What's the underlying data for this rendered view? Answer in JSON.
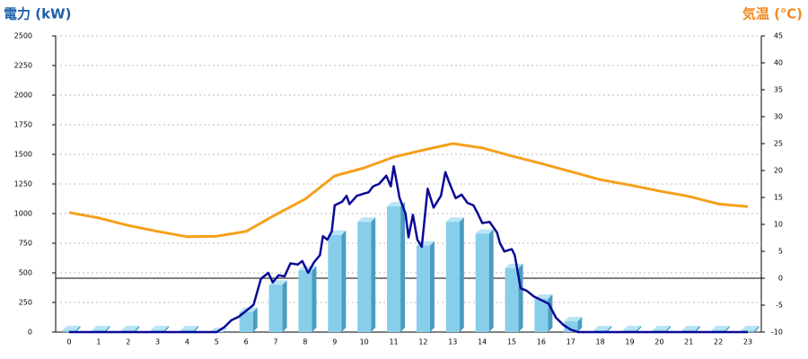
{
  "chart_data": {
    "type": "bar_line",
    "y_title": "電力 (kW)",
    "y2_title": "気温 (℃)",
    "categories": [
      0,
      1,
      2,
      3,
      4,
      5,
      6,
      7,
      8,
      9,
      10,
      11,
      12,
      13,
      14,
      15,
      16,
      17,
      18,
      19,
      20,
      21,
      22,
      23
    ],
    "ylim": [
      0,
      2500
    ],
    "yticks": [
      0,
      250,
      500,
      750,
      1000,
      1250,
      1500,
      1750,
      2000,
      2250,
      2500
    ],
    "y2lim": [
      -10,
      45
    ],
    "y2ticks": [
      -10,
      -5,
      0,
      5,
      10,
      15,
      20,
      25,
      30,
      35,
      40,
      45
    ],
    "grid": true,
    "series": [
      {
        "type": "bar",
        "color": "#87ceeb",
        "values": [
          15,
          15,
          15,
          15,
          15,
          0,
          170,
          400,
          520,
          820,
          930,
          1060,
          730,
          930,
          830,
          540,
          280,
          90,
          15,
          15,
          15,
          15,
          15,
          15
        ]
      },
      {
        "type": "line",
        "color": "#f5a01a",
        "axis": "y2",
        "values": [
          12.2,
          11.2,
          9.8,
          8.7,
          7.7,
          7.8,
          8.7,
          11.8,
          14.7,
          19,
          20.5,
          22.5,
          23.8,
          25,
          24.2,
          22.7,
          21.3,
          19.8,
          18.3,
          17.3,
          16.2,
          15.2,
          13.8,
          13.3
        ]
      },
      {
        "type": "line",
        "color": "#0a0a96",
        "x": [
          0,
          5,
          5.25,
          5.5,
          5.75,
          6,
          6.25,
          6.5,
          6.75,
          6.9,
          7.1,
          7.3,
          7.5,
          7.75,
          7.9,
          8.1,
          8.3,
          8.5,
          8.6,
          8.75,
          8.9,
          9,
          9.25,
          9.4,
          9.5,
          9.75,
          10,
          10.15,
          10.3,
          10.5,
          10.75,
          10.9,
          11,
          11.2,
          11.4,
          11.5,
          11.65,
          11.8,
          11.95,
          12.15,
          12.35,
          12.6,
          12.75,
          12.9,
          13.1,
          13.3,
          13.5,
          13.7,
          13.85,
          14,
          14.25,
          14.5,
          14.6,
          14.75,
          15,
          15.1,
          15.3,
          15.5,
          15.75,
          16,
          16.25,
          16.5,
          16.75,
          17,
          17.25,
          23
        ],
        "values": [
          0,
          0,
          40,
          100,
          130,
          180,
          230,
          450,
          500,
          420,
          480,
          470,
          580,
          570,
          600,
          500,
          590,
          650,
          810,
          780,
          850,
          1070,
          1100,
          1150,
          1080,
          1150,
          1170,
          1180,
          1230,
          1250,
          1320,
          1230,
          1400,
          1130,
          1000,
          800,
          990,
          780,
          720,
          1210,
          1050,
          1150,
          1350,
          1250,
          1130,
          1160,
          1090,
          1070,
          1000,
          920,
          930,
          840,
          750,
          680,
          700,
          650,
          370,
          350,
          300,
          270,
          240,
          120,
          60,
          20,
          0,
          0
        ]
      }
    ]
  }
}
